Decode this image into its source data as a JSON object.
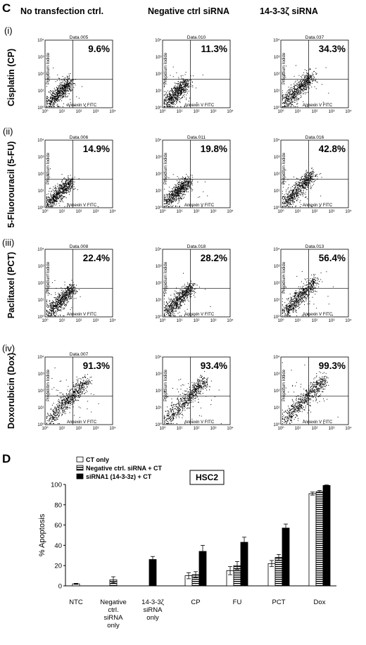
{
  "panel_c": {
    "letter": "C",
    "columns": [
      "No transfection ctrl.",
      "Negative ctrl siRNA",
      "14-3-3ζ siRNA"
    ],
    "rows": [
      {
        "roman": "(i)",
        "drug": "Cisplatin (CP)"
      },
      {
        "roman": "(ii)",
        "drug": "5-Fluorouracil (5-FU)"
      },
      {
        "roman": "(iii)",
        "drug": "Paclitaxel (PCT)"
      },
      {
        "roman": "(iv)",
        "drug": "Doxorubicin (Dox)"
      }
    ],
    "axis_x_title": "Annexin V FITC",
    "axis_y_title": "Propidium Iodide",
    "ticks": [
      "10⁰",
      "10¹",
      "10²",
      "10³",
      "10⁴"
    ],
    "colors": {
      "dots": "#000000",
      "frame": "#000000"
    }
  },
  "chart_data": [
    {
      "type": "scatter",
      "panel": "C",
      "description_scale": "log",
      "xlabel": "Annexin V FITC",
      "ylabel": "Propidium Iodide",
      "xlim": [
        1,
        10000
      ],
      "ylim": [
        1,
        10000
      ],
      "plots": [
        {
          "row": 0,
          "col": 0,
          "title": "Data.005",
          "percent": "9.6%",
          "apoptosis": 9.6
        },
        {
          "row": 0,
          "col": 1,
          "title": "Data.010",
          "percent": "11.3%",
          "apoptosis": 11.3
        },
        {
          "row": 0,
          "col": 2,
          "title": "Data.037",
          "percent": "34.3%",
          "apoptosis": 34.3
        },
        {
          "row": 1,
          "col": 0,
          "title": "Data.006",
          "percent": "14.9%",
          "apoptosis": 14.9
        },
        {
          "row": 1,
          "col": 1,
          "title": "Data.011",
          "percent": "19.8%",
          "apoptosis": 19.8
        },
        {
          "row": 1,
          "col": 2,
          "title": "Data.016",
          "percent": "42.8%",
          "apoptosis": 42.8
        },
        {
          "row": 2,
          "col": 0,
          "title": "Data.008",
          "percent": "22.4%",
          "apoptosis": 22.4
        },
        {
          "row": 2,
          "col": 1,
          "title": "Data.018",
          "percent": "28.2%",
          "apoptosis": 28.2
        },
        {
          "row": 2,
          "col": 2,
          "title": "Data.013",
          "percent": "56.4%",
          "apoptosis": 56.4
        },
        {
          "row": 3,
          "col": 0,
          "title": "Data.007",
          "percent": "91.3%",
          "apoptosis": 91.3
        },
        {
          "row": 3,
          "col": 1,
          "title": "",
          "percent": "93.4%",
          "apoptosis": 93.4
        },
        {
          "row": 3,
          "col": 2,
          "title": "",
          "percent": "99.3%",
          "apoptosis": 99.3
        }
      ]
    },
    {
      "type": "bar",
      "panel": "D",
      "title": "HSC2",
      "ylabel": "% Apoptosis",
      "ylim": [
        0,
        100
      ],
      "yticks": [
        0,
        20,
        40,
        60,
        80,
        100
      ],
      "categories": [
        "NTC",
        "Negative ctrl. siRNA only",
        "14-3-3ζ siRNA only",
        "CP",
        "FU",
        "PCT",
        "Dox"
      ],
      "category_lines": [
        [
          "NTC"
        ],
        [
          "Negative",
          "ctrl.",
          "siRNA",
          "only"
        ],
        [
          "14-3-3ζ",
          "siRNA",
          "only"
        ],
        [
          "CP"
        ],
        [
          "FU"
        ],
        [
          "PCT"
        ],
        [
          "Dox"
        ]
      ],
      "legend_position": "top-left",
      "series": [
        {
          "name": "CT only",
          "style": "white",
          "values": [
            2,
            null,
            null,
            10,
            15,
            22,
            91
          ],
          "errors": [
            0.5,
            null,
            null,
            3,
            4,
            3,
            1.5
          ]
        },
        {
          "name": "Negative ctrl. siRNA + CT",
          "style": "striped",
          "values": [
            null,
            6,
            null,
            11,
            20,
            28,
            93
          ],
          "errors": [
            null,
            3,
            null,
            3,
            4,
            3,
            1
          ]
        },
        {
          "name": "siRNA1 (14-3-3z) + CT",
          "style": "black",
          "values": [
            null,
            null,
            26,
            34,
            43,
            57,
            99
          ],
          "errors": [
            null,
            null,
            3,
            6,
            5,
            4,
            0.5
          ]
        }
      ]
    }
  ],
  "panel_d": {
    "letter": "D"
  }
}
